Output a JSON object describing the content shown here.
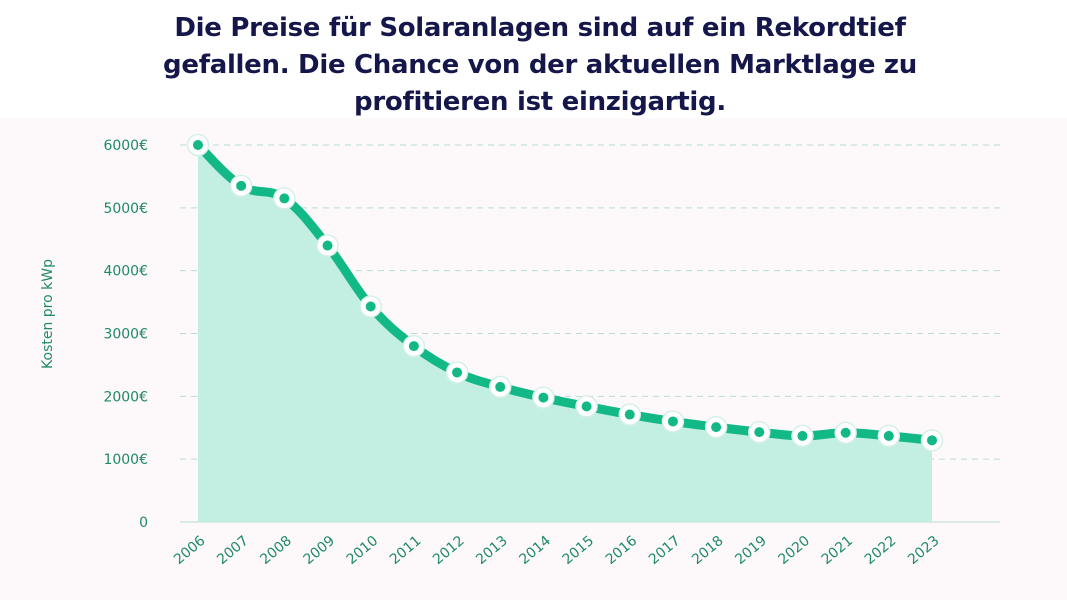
{
  "title": "Die Preise für Solaranlagen sind auf ein Rekordtief gefallen. Die Chance von der aktuellen Marktlage zu profitieren ist einzigartig.",
  "colors": {
    "line": "#12b886",
    "area": "#c3efe3",
    "grid": "#b8ddd0",
    "label": "#1f8a64",
    "title": "#15174a",
    "marker_fill": "#ffffff",
    "marker_dot": "#12b886"
  },
  "chart_data": {
    "type": "area",
    "title": "Die Preise für Solaranlagen sind auf ein Rekordtief gefallen. Die Chance von der aktuellen Marktlage zu profitieren ist einzigartig.",
    "xlabel": "",
    "ylabel": "Kosten pro kWp",
    "categories": [
      "2006",
      "2007",
      "2008",
      "2009",
      "2010",
      "2011",
      "2012",
      "2013",
      "2014",
      "2015",
      "2016",
      "2017",
      "2018",
      "2019",
      "2020",
      "2021",
      "2022",
      "2023"
    ],
    "series": [
      {
        "values": [
          6000,
          5350,
          5150,
          4400,
          3430,
          2800,
          2380,
          2150,
          1980,
          1840,
          1710,
          1600,
          1510,
          1430,
          1370,
          1420,
          1370,
          1300
        ]
      }
    ],
    "ylim": [
      0,
      6000
    ],
    "yticks": [
      {
        "value": 0,
        "label": "0"
      },
      {
        "value": 1000,
        "label": "1000€"
      },
      {
        "value": 2000,
        "label": "2000€"
      },
      {
        "value": 3000,
        "label": "3000€"
      },
      {
        "value": 4000,
        "label": "4000€"
      },
      {
        "value": 5000,
        "label": "5000€"
      },
      {
        "value": 6000,
        "label": "6000€"
      }
    ],
    "grid": true,
    "legend": "none"
  }
}
